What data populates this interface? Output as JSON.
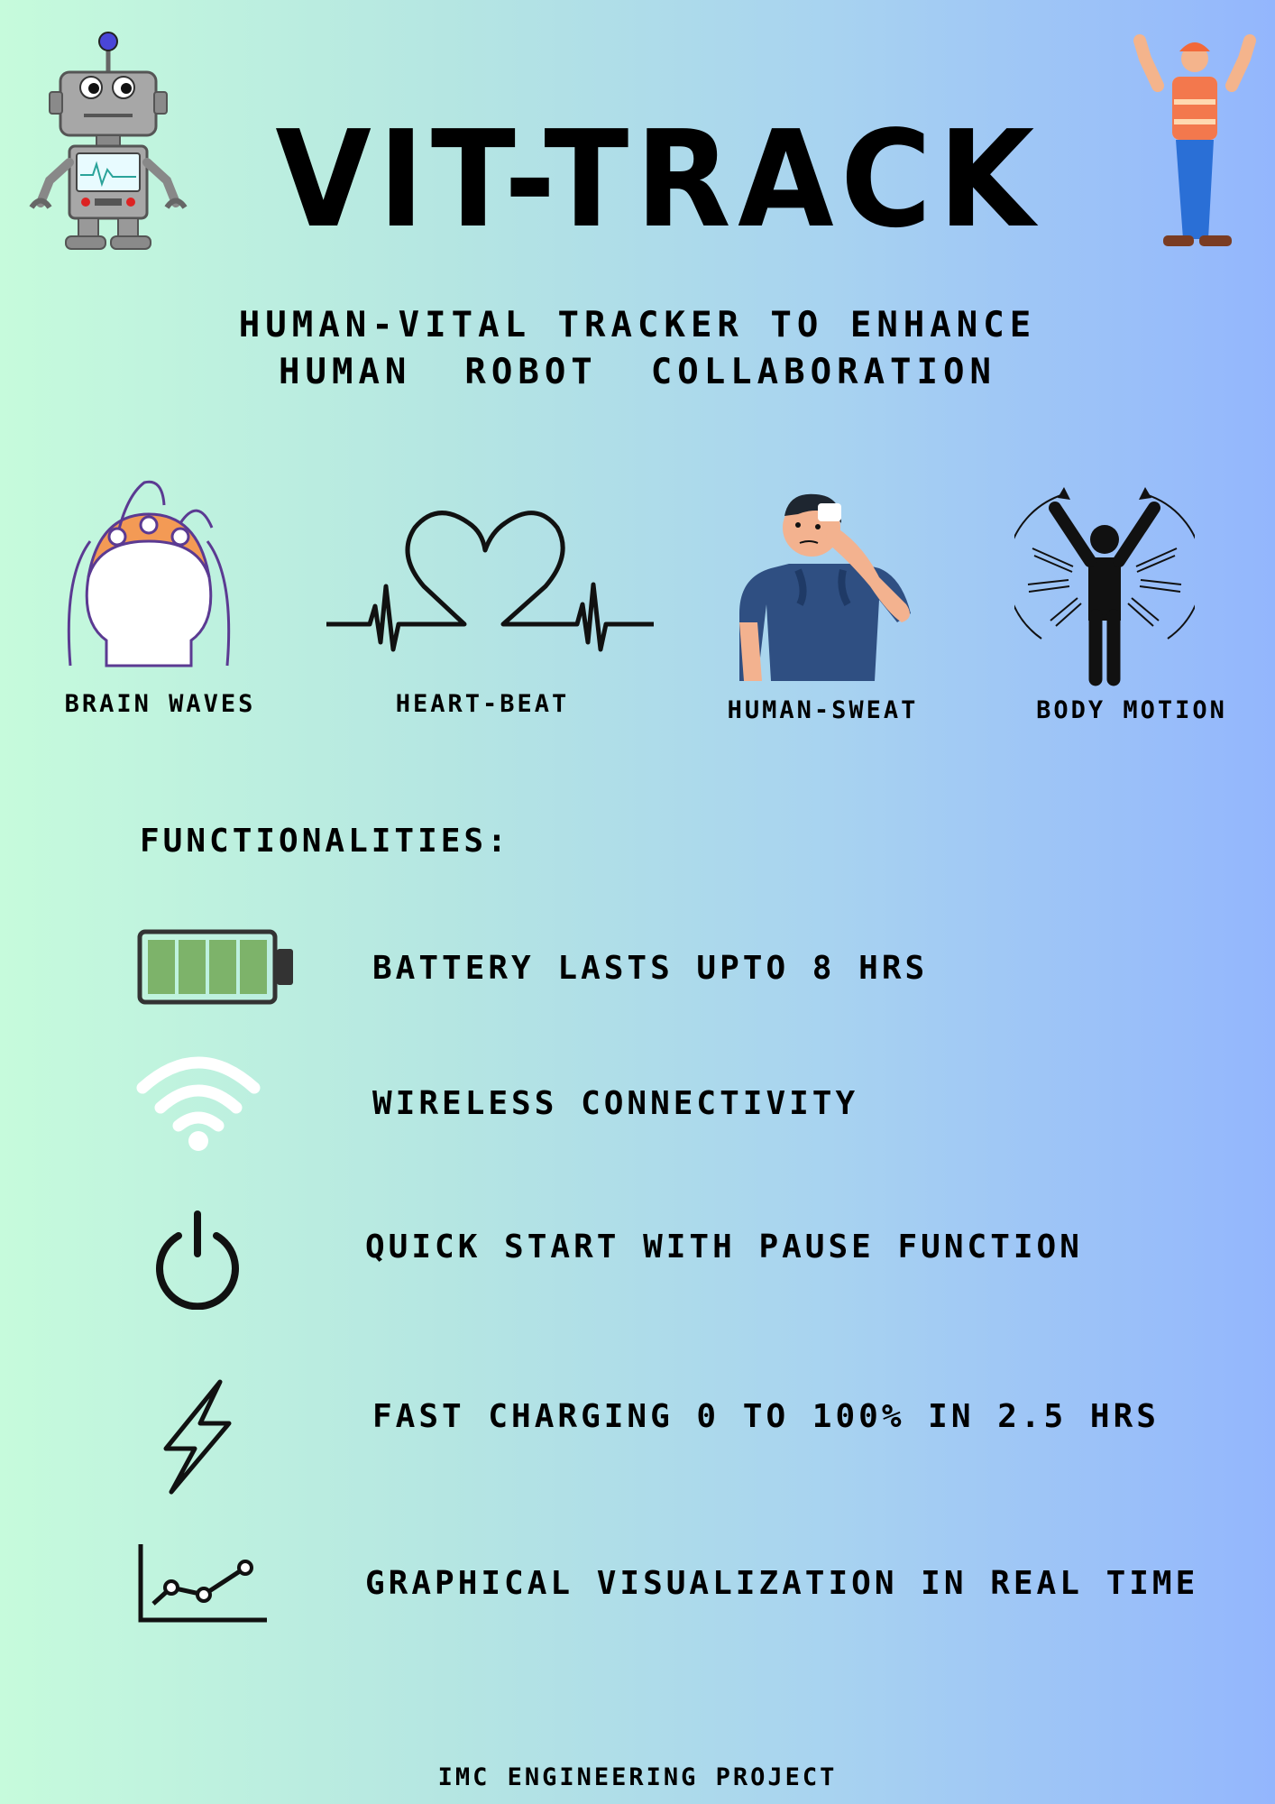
{
  "header": {
    "title": "VIT-TRACK",
    "subtitle_line1": "HUMAN-VITAL TRACKER TO ENHANCE",
    "subtitle_line2": "HUMAN  ROBOT  COLLABORATION"
  },
  "vitals": [
    {
      "label": "BRAIN WAVES",
      "icon": "eeg-cap-head-icon"
    },
    {
      "label": "HEART-BEAT",
      "icon": "heartbeat-line-icon"
    },
    {
      "label": "HUMAN-SWEAT",
      "icon": "sweating-person-icon"
    },
    {
      "label": "BODY MOTION",
      "icon": "body-motion-icon"
    }
  ],
  "functionalities": {
    "heading": "FUNCTIONALITIES:",
    "items": [
      {
        "text": "BATTERY LASTS UPTO 8 HRS",
        "icon": "battery-icon"
      },
      {
        "text": "WIRELESS CONNECTIVITY",
        "icon": "wifi-icon"
      },
      {
        "text": "QUICK START WITH PAUSE FUNCTION",
        "icon": "power-icon"
      },
      {
        "text": "FAST CHARGING 0 TO 100% IN 2.5 HRS",
        "icon": "lightning-bolt-icon"
      },
      {
        "text": "GRAPHICAL VISUALIZATION IN REAL TIME",
        "icon": "line-graph-icon"
      }
    ]
  },
  "footer": {
    "text": "IMC ENGINEERING PROJECT"
  },
  "colors": {
    "gradient_left": "#c6fbdc",
    "gradient_right": "#93b6fd",
    "battery_fill": "#7db36a",
    "eeg_cap": "#f39a55",
    "eeg_wire": "#5b3a92",
    "worker_vest": "#f2693a",
    "worker_pants": "#2a6fd6"
  }
}
